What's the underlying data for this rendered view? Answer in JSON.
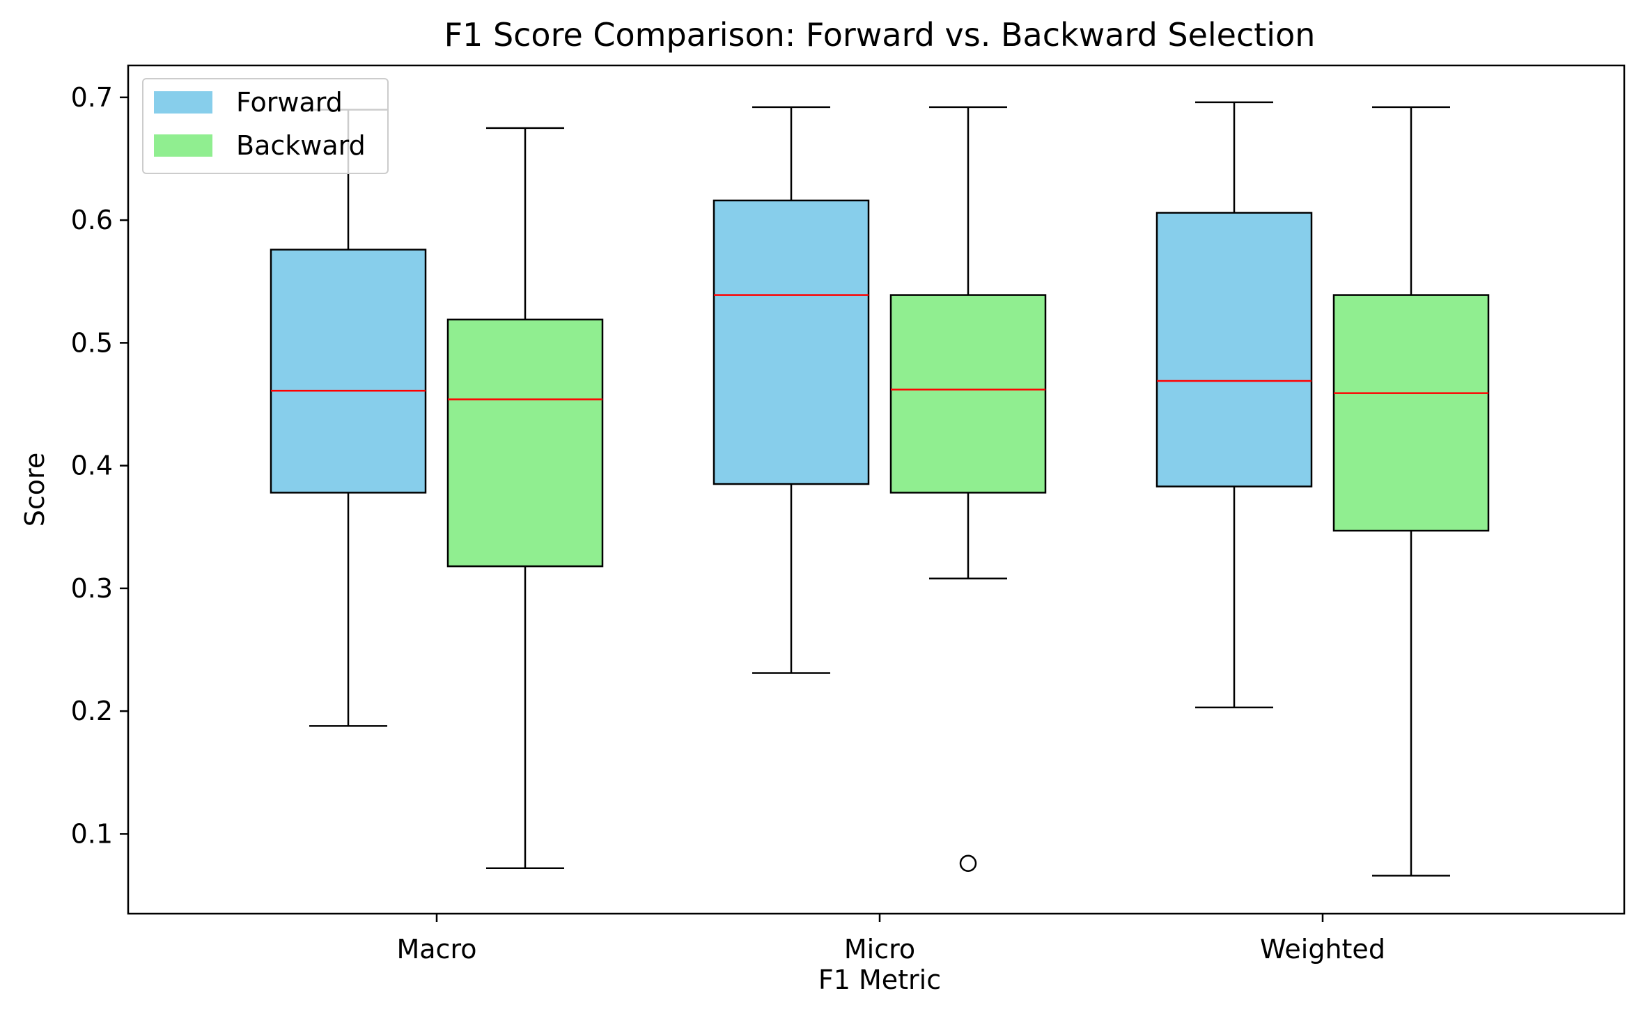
{
  "chart_data": {
    "type": "box",
    "title": "F1 Score Comparison: Forward vs. Backward Selection",
    "xlabel": "F1 Metric",
    "ylabel": "Score",
    "categories": [
      "Macro",
      "Micro",
      "Weighted"
    ],
    "ylim": [
      0.035,
      0.726
    ],
    "yticks": [
      0.1,
      0.2,
      0.3,
      0.4,
      0.5,
      0.6,
      0.7
    ],
    "ytick_labels": [
      "0.1",
      "0.2",
      "0.3",
      "0.4",
      "0.5",
      "0.6",
      "0.7"
    ],
    "grid": false,
    "legend_position": "top-left",
    "median_color": "#ff0000",
    "series": [
      {
        "name": "Forward",
        "color": "#87ceeb",
        "boxes": [
          {
            "category": "Macro",
            "whisker_low": 0.188,
            "q1": 0.378,
            "median": 0.461,
            "q3": 0.576,
            "whisker_high": 0.69,
            "outliers": []
          },
          {
            "category": "Micro",
            "whisker_low": 0.231,
            "q1": 0.385,
            "median": 0.539,
            "q3": 0.616,
            "whisker_high": 0.692,
            "outliers": []
          },
          {
            "category": "Weighted",
            "whisker_low": 0.203,
            "q1": 0.383,
            "median": 0.469,
            "q3": 0.606,
            "whisker_high": 0.696,
            "outliers": []
          }
        ]
      },
      {
        "name": "Backward",
        "color": "#90ee90",
        "boxes": [
          {
            "category": "Macro",
            "whisker_low": 0.072,
            "q1": 0.318,
            "median": 0.454,
            "q3": 0.519,
            "whisker_high": 0.675,
            "outliers": []
          },
          {
            "category": "Micro",
            "whisker_low": 0.308,
            "q1": 0.378,
            "median": 0.462,
            "q3": 0.539,
            "whisker_high": 0.692,
            "outliers": [
              0.076
            ]
          },
          {
            "category": "Weighted",
            "whisker_low": 0.066,
            "q1": 0.347,
            "median": 0.459,
            "q3": 0.539,
            "whisker_high": 0.692,
            "outliers": []
          }
        ]
      }
    ]
  }
}
